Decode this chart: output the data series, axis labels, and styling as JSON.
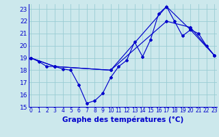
{
  "title": "Graphe des températures (°C)",
  "background_color": "#cce8ec",
  "grid_color": "#99ccd4",
  "line_color": "#0000cc",
  "xlim": [
    -0.3,
    23.3
  ],
  "ylim": [
    15,
    23.4
  ],
  "yticks": [
    15,
    16,
    17,
    18,
    19,
    20,
    21,
    22,
    23
  ],
  "xticks": [
    0,
    1,
    2,
    3,
    4,
    5,
    6,
    7,
    8,
    9,
    10,
    11,
    12,
    13,
    14,
    15,
    16,
    17,
    18,
    19,
    20,
    21,
    22,
    23
  ],
  "curve1_x": [
    0,
    1,
    2,
    3,
    4,
    5,
    6,
    7,
    8,
    9,
    10,
    11,
    12,
    13,
    14,
    15,
    16,
    17,
    18,
    19,
    20,
    21,
    22,
    23
  ],
  "curve1_y": [
    19.0,
    18.7,
    18.3,
    18.3,
    18.1,
    18.0,
    16.8,
    15.3,
    15.5,
    16.1,
    17.4,
    18.3,
    18.8,
    20.3,
    19.1,
    20.5,
    22.6,
    23.2,
    22.0,
    20.8,
    21.3,
    21.0,
    20.0,
    19.2
  ],
  "curve2_x": [
    0,
    3,
    10,
    17,
    20,
    23
  ],
  "curve2_y": [
    19.0,
    18.3,
    18.0,
    23.2,
    21.3,
    19.2
  ],
  "curve3_x": [
    0,
    3,
    10,
    17,
    20,
    23
  ],
  "curve3_y": [
    19.0,
    18.3,
    18.0,
    22.0,
    21.5,
    19.2
  ],
  "xlabel_fontsize": 7.5,
  "xlabel_bold": true,
  "ytick_fontsize": 6.5,
  "xtick_fontsize": 5.5
}
